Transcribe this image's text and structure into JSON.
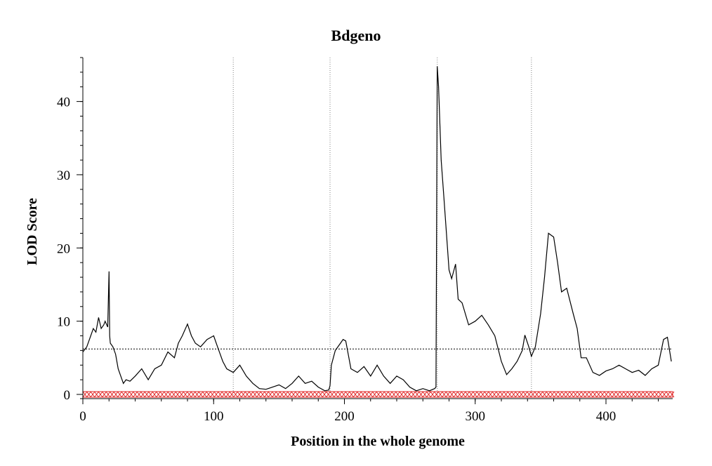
{
  "chart_data": {
    "type": "line",
    "title": "Bdgeno",
    "xlabel": "Position in the whole genome",
    "ylabel": "LOD Score",
    "xlim": [
      0,
      451
    ],
    "ylim": [
      0,
      46
    ],
    "xticks": [
      0,
      100,
      200,
      300,
      400
    ],
    "yticks": [
      0,
      10,
      20,
      30,
      40
    ],
    "threshold": 6.2,
    "chromosome_boundaries": [
      115,
      189,
      271,
      343
    ],
    "colors": {
      "line": "#000000",
      "markers": "#e02020",
      "grid": "#808080"
    },
    "marker_y": 0,
    "series": [
      {
        "values_x": [
          0,
          3,
          6,
          8,
          10,
          12,
          14,
          16,
          17,
          19,
          20,
          20.5,
          21,
          23,
          25,
          27,
          29,
          31,
          33,
          36,
          40,
          45,
          50,
          55,
          60,
          65,
          70,
          73,
          76,
          80,
          83,
          86,
          90,
          95,
          100,
          103,
          107,
          110,
          115,
          120,
          125,
          130,
          135,
          140,
          145,
          150,
          155,
          160,
          165,
          170,
          175,
          180,
          185,
          188,
          189,
          190,
          193,
          197,
          199,
          201,
          205,
          210,
          215,
          220,
          225,
          230,
          235,
          240,
          245,
          250,
          255,
          260,
          265,
          269,
          270,
          271,
          272,
          274,
          276,
          278,
          280,
          282,
          285,
          287,
          290,
          295,
          300,
          305,
          310,
          315,
          320,
          324,
          328,
          332,
          336,
          338,
          341,
          343,
          346,
          350,
          353,
          356,
          360,
          363,
          366,
          370,
          375,
          378,
          381,
          385,
          390,
          395,
          400,
          405,
          410,
          415,
          420,
          425,
          430,
          435,
          440,
          444,
          447,
          450
        ],
        "values_y": [
          5.8,
          6.5,
          8.0,
          9.0,
          8.5,
          10.5,
          9.0,
          9.5,
          10.0,
          9.2,
          16.8,
          8.0,
          7.0,
          6.5,
          5.5,
          3.5,
          2.5,
          1.5,
          2.0,
          1.8,
          2.5,
          3.5,
          2.0,
          3.5,
          4.0,
          5.8,
          5.0,
          7.0,
          8.0,
          9.6,
          8.0,
          7.0,
          6.5,
          7.5,
          8.0,
          6.5,
          4.5,
          3.5,
          3.0,
          4.0,
          2.5,
          1.5,
          0.8,
          0.7,
          1.0,
          1.3,
          0.8,
          1.5,
          2.5,
          1.5,
          1.8,
          1.0,
          0.5,
          0.6,
          1.2,
          4.0,
          6.0,
          7.0,
          7.5,
          7.3,
          3.5,
          3.0,
          3.8,
          2.5,
          4.0,
          2.5,
          1.5,
          2.5,
          2.0,
          1.0,
          0.5,
          0.8,
          0.5,
          0.8,
          1.0,
          44.8,
          42.0,
          32.0,
          27.0,
          22.0,
          17.0,
          15.8,
          17.8,
          13.0,
          12.5,
          9.5,
          10.0,
          10.8,
          9.5,
          8.0,
          4.5,
          2.7,
          3.5,
          4.5,
          6.0,
          8.1,
          6.5,
          5.2,
          6.5,
          11.0,
          16.0,
          22.0,
          21.5,
          18.0,
          14.0,
          14.5,
          11.0,
          9.0,
          5.0,
          5.0,
          3.0,
          2.6,
          3.2,
          3.5,
          4.0,
          3.5,
          3.0,
          3.3,
          2.6,
          3.5,
          4.0,
          7.5,
          7.8,
          4.5
        ]
      }
    ]
  }
}
